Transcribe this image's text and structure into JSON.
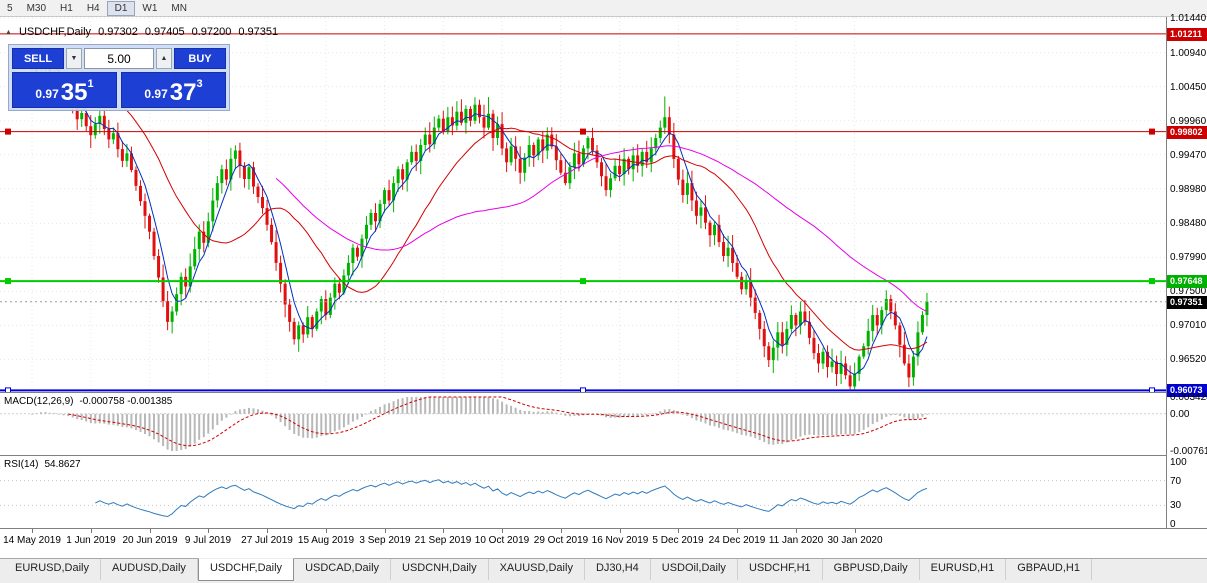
{
  "toolbar": {
    "timeframes": [
      {
        "label": "5",
        "active": false
      },
      {
        "label": "M30",
        "active": false
      },
      {
        "label": "H1",
        "active": false
      },
      {
        "label": "H4",
        "active": false
      },
      {
        "label": "D1",
        "active": true
      },
      {
        "label": "W1",
        "active": false
      },
      {
        "label": "MN",
        "active": false
      }
    ]
  },
  "chart": {
    "symbol_tf": "USDCHF,Daily",
    "open": "0.97302",
    "high": "0.97405",
    "low": "0.97200",
    "close": "0.97351"
  },
  "icons": {
    "collapse": "▲",
    "vol_down": "▼",
    "vol_up": "▲"
  },
  "one_click": {
    "sell_label": "SELL",
    "buy_label": "BUY",
    "volume": "5.00",
    "sell_price_prefix": "0.97",
    "sell_price_big": "35",
    "sell_price_sup": "1",
    "buy_price_prefix": "0.97",
    "buy_price_big": "37",
    "buy_price_sup": "3"
  },
  "macd": {
    "name": "MACD(12,26,9)",
    "values": "-0.000758 -0.001385",
    "axis": [
      {
        "label": "0.003428",
        "value": 0.003428
      },
      {
        "label": "0.00",
        "value": 0
      },
      {
        "label": "-0.00761",
        "value": -0.00761
      }
    ],
    "range": [
      -0.00761,
      0.003428
    ]
  },
  "rsi": {
    "name": "RSI(14)",
    "value": "54.8627",
    "axis": [
      {
        "label": "100",
        "value": 100
      },
      {
        "label": "70",
        "value": 70
      },
      {
        "label": "30",
        "value": 30
      },
      {
        "label": "0",
        "value": 0
      }
    ],
    "levels": [
      70,
      30
    ]
  },
  "tabs": [
    {
      "label": "EURUSD,Daily",
      "active": false
    },
    {
      "label": "AUDUSD,Daily",
      "active": false
    },
    {
      "label": "USDCHF,Daily",
      "active": true
    },
    {
      "label": "USDCAD,Daily",
      "active": false
    },
    {
      "label": "USDCNH,Daily",
      "active": false
    },
    {
      "label": "XAUUSD,Daily",
      "active": false
    },
    {
      "label": "DJ30,H4",
      "active": false
    },
    {
      "label": "USDOil,Daily",
      "active": false
    },
    {
      "label": "USDCHF,H1",
      "active": false
    },
    {
      "label": "GBPUSD,Daily",
      "active": false
    },
    {
      "label": "EURUSD,H1",
      "active": false
    },
    {
      "label": "GBPAUD,H1",
      "active": false
    }
  ],
  "chart_data": {
    "type": "candlestick",
    "symbol": "USDCHF",
    "timeframe": "Daily",
    "ohlc_current": {
      "open": 0.97302,
      "high": 0.97405,
      "low": 0.972,
      "close": 0.97351
    },
    "ylim": [
      0.9605,
      1.01454
    ],
    "y_ticks": [
      "1.01440",
      "1.00940",
      "1.00450",
      "0.99960",
      "0.99470",
      "0.98980",
      "0.98480",
      "0.97990",
      "0.97500",
      "0.97010",
      "0.96520"
    ],
    "x_tick_labels": [
      "14 May 2019",
      "1 Jun 2019",
      "20 Jun 2019",
      "9 Jul 2019",
      "27 Jul 2019",
      "15 Aug 2019",
      "3 Sep 2019",
      "21 Sep 2019",
      "10 Oct 2019",
      "29 Oct 2019",
      "16 Nov 2019",
      "5 Dec 2019",
      "24 Dec 2019",
      "11 Jan 2020",
      "30 Jan 2020"
    ],
    "x_tick_every": 13,
    "first_open": 1.005,
    "closes": [
      1.0063,
      1.0078,
      1.0092,
      1.0074,
      1.0055,
      1.0067,
      1.0044,
      1.0028,
      1.0037,
      1.0014,
      0.9998,
      1.0007,
      0.9988,
      0.9975,
      0.9991,
      1.0003,
      0.9984,
      0.9969,
      0.9978,
      0.9955,
      0.9938,
      0.9949,
      0.9925,
      0.9902,
      0.988,
      0.9859,
      0.9836,
      0.9801,
      0.977,
      0.9736,
      0.9706,
      0.9721,
      0.9746,
      0.9771,
      0.9757,
      0.9786,
      0.9811,
      0.9836,
      0.982,
      0.9851,
      0.9881,
      0.9906,
      0.9926,
      0.9911,
      0.9941,
      0.9953,
      0.9931,
      0.9912,
      0.9929,
      0.9901,
      0.9886,
      0.987,
      0.9846,
      0.9821,
      0.9791,
      0.9761,
      0.9731,
      0.9706,
      0.9681,
      0.9701,
      0.9688,
      0.9713,
      0.9696,
      0.9721,
      0.9739,
      0.9716,
      0.9741,
      0.9761,
      0.9748,
      0.9773,
      0.9791,
      0.9813,
      0.98,
      0.9826,
      0.9846,
      0.9863,
      0.9851,
      0.9876,
      0.9896,
      0.9881,
      0.9906,
      0.9926,
      0.9911,
      0.9936,
      0.9951,
      0.9938,
      0.9961,
      0.9976,
      0.9962,
      0.9986,
      0.9999,
      0.9981,
      1.0001,
      0.9989,
      1.0009,
      0.9993,
      1.0013,
      0.9996,
      1.0019,
      1.0001,
      0.9986,
      1.0006,
      0.9971,
      0.9991,
      0.9956,
      0.9936,
      0.9959,
      0.9941,
      0.9921,
      0.9943,
      0.9961,
      0.9946,
      0.9969,
      0.9953,
      0.9976,
      0.9959,
      0.9939,
      0.9921,
      0.9906,
      0.9929,
      0.9949,
      0.9933,
      0.9956,
      0.9971,
      0.9953,
      0.9936,
      0.9916,
      0.9896,
      0.9913,
      0.9931,
      0.9919,
      0.9941,
      0.9926,
      0.9946,
      0.9931,
      0.9951,
      0.9936,
      0.9956,
      0.9971,
      0.9986,
      1.0001,
      0.9976,
      0.9941,
      0.9911,
      0.9889,
      0.9906,
      0.9881,
      0.9859,
      0.9871,
      0.9849,
      0.9831,
      0.9846,
      0.9821,
      0.9801,
      0.9813,
      0.9791,
      0.9771,
      0.9753,
      0.9766,
      0.9741,
      0.9719,
      0.9696,
      0.9671,
      0.9651,
      0.9669,
      0.9691,
      0.9673,
      0.9696,
      0.9716,
      0.9701,
      0.9721,
      0.9706,
      0.9683,
      0.9661,
      0.9646,
      0.9663,
      0.9641,
      0.9649,
      0.9631,
      0.9646,
      0.9629,
      0.9613,
      0.9631,
      0.9656,
      0.9671,
      0.9693,
      0.9716,
      0.9701,
      0.9723,
      0.9739,
      0.9721,
      0.9701,
      0.9673,
      0.9646,
      0.9626,
      0.9656,
      0.9691,
      0.9716,
      0.97351
    ],
    "wick_overrides": {
      "2": {
        "high": 1.0105
      },
      "30": {
        "low": 0.9694
      },
      "101": {
        "high": 1.003
      },
      "140": {
        "high": 1.0031
      },
      "163": {
        "low": 0.9641
      },
      "181": {
        "low": 0.9609
      },
      "194": {
        "low": 0.9612
      },
      "198": {
        "high": 0.9748
      }
    },
    "colors": {
      "up": "#00b200",
      "down": "#e01010"
    },
    "moving_averages": [
      {
        "period": 5,
        "color": "#0030c0"
      },
      {
        "period": 21,
        "color": "#d40000"
      },
      {
        "period": 55,
        "color": "#e800e8"
      }
    ],
    "levels": [
      {
        "value": 1.01211,
        "label": "1.01211",
        "color": "#cc0000",
        "badge": "#cc0000",
        "width": 1,
        "handles": "none"
      },
      {
        "value": 0.99802,
        "label": "0.99802",
        "color": "#cc0000",
        "badge": "#cc0000",
        "width": 1,
        "handles": "filled"
      },
      {
        "value": 0.97648,
        "label": "0.97648",
        "color": "#00cc00",
        "badge": "#00b000",
        "width": 2,
        "handles": "filled"
      },
      {
        "value": 0.96073,
        "label": "0.96073",
        "color": "#0000e0",
        "badge": "#0000d0",
        "width": 2,
        "handles": "hollow"
      }
    ],
    "current_price": {
      "value": 0.97351,
      "label": "0.97351",
      "badge": "#000000"
    }
  }
}
